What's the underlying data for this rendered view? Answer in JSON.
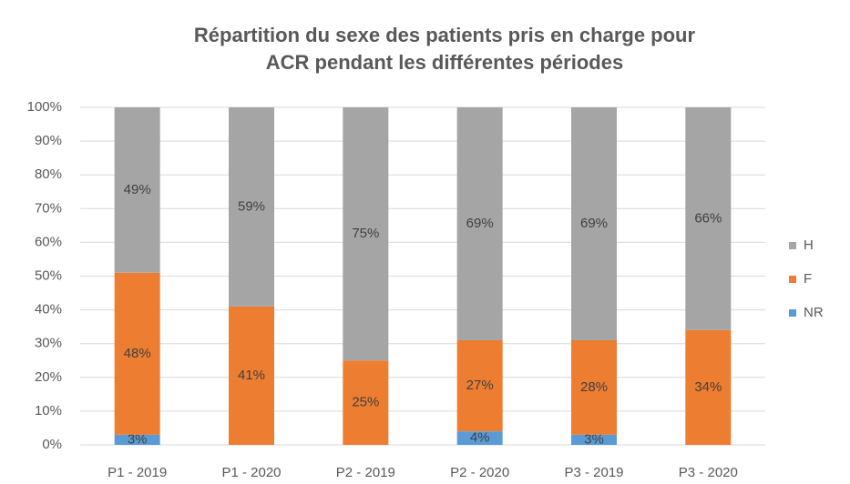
{
  "chart_data": {
    "type": "stacked_bar",
    "title": [
      "Répartition du sexe des patients pris en charge pour",
      "ACR pendant les différentes périodes"
    ],
    "categories": [
      "P1 - 2019",
      "P1 - 2020",
      "P2 - 2019",
      "P2 - 2020",
      "P3 - 2019",
      "P3 - 2020"
    ],
    "series": [
      {
        "name": "NR",
        "color": "#5b9bd5",
        "values": [
          3,
          null,
          null,
          4,
          3,
          null
        ],
        "value_labels": [
          "3%",
          null,
          null,
          "4%",
          "3%",
          null
        ]
      },
      {
        "name": "F",
        "color": "#ed7d31",
        "values": [
          48,
          41,
          25,
          27,
          28,
          34
        ],
        "value_labels": [
          "48%",
          "41%",
          "25%",
          "27%",
          "28%",
          "34%"
        ]
      },
      {
        "name": "H",
        "color": "#a5a5a5",
        "values": [
          49,
          59,
          75,
          69,
          69,
          66
        ],
        "value_labels": [
          "49%",
          "59%",
          "75%",
          "69%",
          "69%",
          "66%"
        ]
      }
    ],
    "ylim": [
      0,
      100
    ],
    "yticks": [
      {
        "value": 0,
        "label": "0%"
      },
      {
        "value": 10,
        "label": "10%"
      },
      {
        "value": 20,
        "label": "20%"
      },
      {
        "value": 30,
        "label": "30%"
      },
      {
        "value": 40,
        "label": "40%"
      },
      {
        "value": 50,
        "label": "50%"
      },
      {
        "value": 60,
        "label": "60%"
      },
      {
        "value": 70,
        "label": "70%"
      },
      {
        "value": 80,
        "label": "80%"
      },
      {
        "value": 90,
        "label": "90%"
      },
      {
        "value": 100,
        "label": "100%"
      }
    ],
    "grid": true,
    "legend": "right"
  }
}
